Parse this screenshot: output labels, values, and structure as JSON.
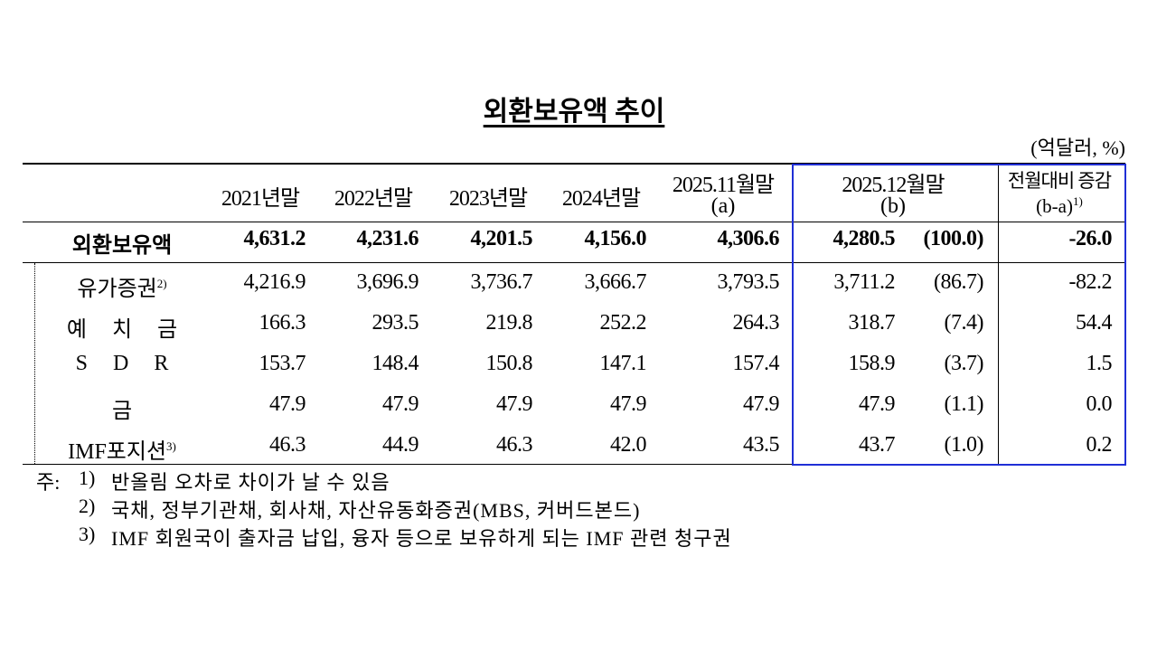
{
  "title": "외환보유액 추이",
  "unit": "(억달러, %)",
  "header": {
    "columns": [
      {
        "line1": "2021년말"
      },
      {
        "line1": "2022년말"
      },
      {
        "line1": "2023년말"
      },
      {
        "line1": "2024년말"
      },
      {
        "line1": "2025.11월말",
        "line2": "(a)"
      },
      {
        "line1": "2025.12월말",
        "line2": "(b)"
      },
      {
        "line1": "전월대비 증감",
        "line2": "(b-a)",
        "note": "1)"
      }
    ]
  },
  "rows": [
    {
      "label": "외환보유액",
      "values": [
        "4,631.2",
        "4,231.6",
        "4,201.5",
        "4,156.0",
        "4,306.6",
        "4,280.5",
        "(100.0)",
        "-26.0"
      ]
    },
    {
      "label": "유가증권",
      "note": "2)",
      "values": [
        "4,216.9",
        "3,696.9",
        "3,736.7",
        "3,666.7",
        "3,793.5",
        "3,711.2",
        "(86.7)",
        "-82.2"
      ]
    },
    {
      "label": "예 치 금",
      "values": [
        "166.3",
        "293.5",
        "219.8",
        "252.2",
        "264.3",
        "318.7",
        "(7.4)",
        "54.4"
      ]
    },
    {
      "label": "S D R",
      "values": [
        "153.7",
        "148.4",
        "150.8",
        "147.1",
        "157.4",
        "158.9",
        "(3.7)",
        "1.5"
      ]
    },
    {
      "label": "금",
      "values": [
        "47.9",
        "47.9",
        "47.9",
        "47.9",
        "47.9",
        "47.9",
        "(1.1)",
        "0.0"
      ]
    },
    {
      "label": "IMF포지션",
      "note": "3)",
      "values": [
        "46.3",
        "44.9",
        "46.3",
        "42.0",
        "43.5",
        "43.7",
        "(1.0)",
        "0.2"
      ]
    }
  ],
  "notes": {
    "label": "주:",
    "items": [
      {
        "marker": "1)",
        "text": "반올림 오차로 차이가 날 수 있음"
      },
      {
        "marker": "2)",
        "text": "국채, 정부기관채, 회사채, 자산유동화증권(MBS, 커버드본드)"
      },
      {
        "marker": "3)",
        "text": "IMF 회원국이 출자금 납입, 융자 등으로 보유하게 되는 IMF 관련 청구권"
      }
    ]
  }
}
